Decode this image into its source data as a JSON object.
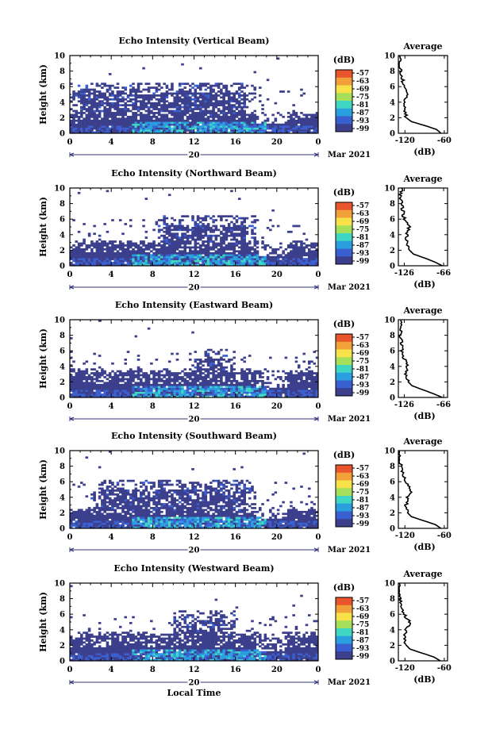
{
  "figure": {
    "x_axis_label": "Local Time",
    "date_label": "Mar 2021",
    "day_label": "20",
    "average_title": "Average",
    "average_unit": "(dB)",
    "colorbar_unit": "(dB)",
    "height_label": "Height (km)"
  },
  "chart_data": [
    {
      "type": "heatmap",
      "title": "Echo Intensity (Vertical Beam)",
      "xlabel": "",
      "ylabel": "Height (km)",
      "xticks": [
        "0",
        "4",
        "8",
        "12",
        "16",
        "20",
        "0"
      ],
      "xlim": [
        0,
        24
      ],
      "ylim": [
        0,
        10
      ],
      "yticks": [
        "0",
        "2",
        "4",
        "6",
        "8",
        "10"
      ],
      "colorbar_label": "(dB)",
      "colorbar_ticks": [
        "-57",
        "-63",
        "-69",
        "-75",
        "-81",
        "-87",
        "-93",
        "-99"
      ],
      "colorbar_colors": [
        "#e8542c",
        "#f2a13a",
        "#f7e24a",
        "#a6e05a",
        "#3fd6c2",
        "#2a9fe0",
        "#3a5fd0",
        "#3b3f8c"
      ],
      "profile": {
        "title": "Average",
        "xlabel": "(dB)",
        "xticks": [
          "-120",
          "-60"
        ],
        "xlim": [
          -130,
          -55
        ],
        "height": [
          0,
          0.5,
          1,
          1.5,
          2,
          3,
          4,
          5,
          6,
          7,
          8,
          9,
          10
        ],
        "db": [
          -65,
          -72,
          -90,
          -110,
          -118,
          -120,
          -122,
          -116,
          -122,
          -124,
          -126,
          -128,
          -128
        ]
      },
      "echo_layers": [
        {
          "from_km": 0,
          "to_km": 2.5,
          "strongest_near_km": 0.8
        },
        {
          "from_km": 2.5,
          "to_km": 6.5,
          "time_from": 0,
          "time_to": 18
        }
      ]
    },
    {
      "type": "heatmap",
      "title": "Echo Intensity (Northward Beam)",
      "xlabel": "",
      "ylabel": "Height (km)",
      "xticks": [
        "0",
        "4",
        "8",
        "12",
        "16",
        "20",
        "0"
      ],
      "xlim": [
        0,
        24
      ],
      "ylim": [
        0,
        10
      ],
      "yticks": [
        "0",
        "2",
        "4",
        "6",
        "8",
        "10"
      ],
      "colorbar_label": "(dB)",
      "colorbar_ticks": [
        "-57",
        "-63",
        "-69",
        "-75",
        "-81",
        "-87",
        "-93",
        "-99"
      ],
      "colorbar_colors": [
        "#e8542c",
        "#f2a13a",
        "#f7e24a",
        "#a6e05a",
        "#3fd6c2",
        "#2a9fe0",
        "#3a5fd0",
        "#3b3f8c"
      ],
      "profile": {
        "title": "Average",
        "xlabel": "(dB)",
        "xticks": [
          "-126",
          "-66"
        ],
        "xlim": [
          -135,
          -60
        ],
        "height": [
          0,
          0.5,
          1,
          1.5,
          2,
          3,
          4,
          5,
          6,
          7,
          8,
          9,
          10
        ],
        "db": [
          -68,
          -80,
          -95,
          -112,
          -118,
          -122,
          -122,
          -118,
          -126,
          -128,
          -130,
          -132,
          -130
        ]
      },
      "echo_layers": [
        {
          "from_km": 0,
          "to_km": 3,
          "strongest_near_km": 0.8
        },
        {
          "from_km": 3,
          "to_km": 6.5,
          "time_from": 8,
          "time_to": 18
        }
      ]
    },
    {
      "type": "heatmap",
      "title": "Echo Intensity (Eastward Beam)",
      "xlabel": "",
      "ylabel": "Height (km)",
      "xticks": [
        "0",
        "4",
        "8",
        "12",
        "16",
        "20",
        "0"
      ],
      "xlim": [
        0,
        24
      ],
      "ylim": [
        0,
        10
      ],
      "yticks": [
        "0",
        "2",
        "4",
        "6",
        "8",
        "10"
      ],
      "colorbar_label": "(dB)",
      "colorbar_ticks": [
        "-57",
        "-63",
        "-69",
        "-75",
        "-81",
        "-87",
        "-93",
        "-99"
      ],
      "colorbar_colors": [
        "#e8542c",
        "#f2a13a",
        "#f7e24a",
        "#a6e05a",
        "#3fd6c2",
        "#2a9fe0",
        "#3a5fd0",
        "#3b3f8c"
      ],
      "profile": {
        "title": "Average",
        "xlabel": "(dB)",
        "xticks": [
          "-126",
          "-66"
        ],
        "xlim": [
          -135,
          -60
        ],
        "height": [
          0,
          0.5,
          1,
          1.5,
          2,
          3,
          4,
          5,
          6,
          7,
          8,
          9,
          10
        ],
        "db": [
          -68,
          -82,
          -98,
          -114,
          -120,
          -124,
          -122,
          -126,
          -130,
          -130,
          -132,
          -132,
          -132
        ]
      },
      "echo_layers": [
        {
          "from_km": 0,
          "to_km": 3.5,
          "strongest_near_km": 0.9
        },
        {
          "from_km": 3.5,
          "to_km": 6.2,
          "time_from": 12,
          "time_to": 16
        }
      ]
    },
    {
      "type": "heatmap",
      "title": "Echo Intensity (Southward Beam)",
      "xlabel": "",
      "ylabel": "Height (km)",
      "xticks": [
        "0",
        "4",
        "8",
        "12",
        "16",
        "20",
        "0"
      ],
      "xlim": [
        0,
        24
      ],
      "ylim": [
        0,
        10
      ],
      "yticks": [
        "0",
        "2",
        "4",
        "6",
        "8",
        "10"
      ],
      "colorbar_label": "(dB)",
      "colorbar_ticks": [
        "-57",
        "-63",
        "-69",
        "-75",
        "-81",
        "-87",
        "-93",
        "-99"
      ],
      "colorbar_colors": [
        "#e8542c",
        "#f2a13a",
        "#f7e24a",
        "#a6e05a",
        "#3fd6c2",
        "#2a9fe0",
        "#3a5fd0",
        "#3b3f8c"
      ],
      "profile": {
        "title": "Average",
        "xlabel": "(dB)",
        "xticks": [
          "-120",
          "-60"
        ],
        "xlim": [
          -130,
          -55
        ],
        "height": [
          0,
          0.5,
          1,
          1.5,
          2,
          3,
          4,
          5,
          6,
          7,
          8,
          9,
          10
        ],
        "db": [
          -65,
          -74,
          -92,
          -110,
          -116,
          -118,
          -116,
          -110,
          -118,
          -124,
          -126,
          -130,
          -128
        ]
      },
      "echo_layers": [
        {
          "from_km": 0,
          "to_km": 2.5,
          "strongest_near_km": 0.8
        },
        {
          "from_km": 2.5,
          "to_km": 6.2,
          "time_from": 2,
          "time_to": 18
        }
      ]
    },
    {
      "type": "heatmap",
      "title": "Echo Intensity (Westward Beam)",
      "xlabel": "Local Time",
      "ylabel": "Height (km)",
      "xticks": [
        "0",
        "4",
        "8",
        "12",
        "16",
        "20",
        "0"
      ],
      "xlim": [
        0,
        24
      ],
      "ylim": [
        0,
        10
      ],
      "yticks": [
        "0",
        "2",
        "4",
        "6",
        "8",
        "10"
      ],
      "colorbar_label": "(dB)",
      "colorbar_ticks": [
        "-57",
        "-63",
        "-69",
        "-75",
        "-81",
        "-87",
        "-93",
        "-99"
      ],
      "colorbar_colors": [
        "#e8542c",
        "#f2a13a",
        "#f7e24a",
        "#a6e05a",
        "#3fd6c2",
        "#2a9fe0",
        "#3a5fd0",
        "#3b3f8c"
      ],
      "profile": {
        "title": "Average",
        "xlabel": "(dB)",
        "xticks": [
          "-120",
          "-60"
        ],
        "xlim": [
          -130,
          -55
        ],
        "height": [
          0,
          0.5,
          1,
          1.5,
          2,
          3,
          4,
          5,
          6,
          7,
          8,
          9,
          10
        ],
        "db": [
          -66,
          -76,
          -94,
          -112,
          -118,
          -120,
          -118,
          -112,
          -122,
          -126,
          -128,
          -130,
          -130
        ]
      },
      "echo_layers": [
        {
          "from_km": 0,
          "to_km": 3.5,
          "strongest_near_km": 0.8
        },
        {
          "from_km": 3.5,
          "to_km": 6.5,
          "time_from": 10,
          "time_to": 16
        }
      ]
    }
  ]
}
